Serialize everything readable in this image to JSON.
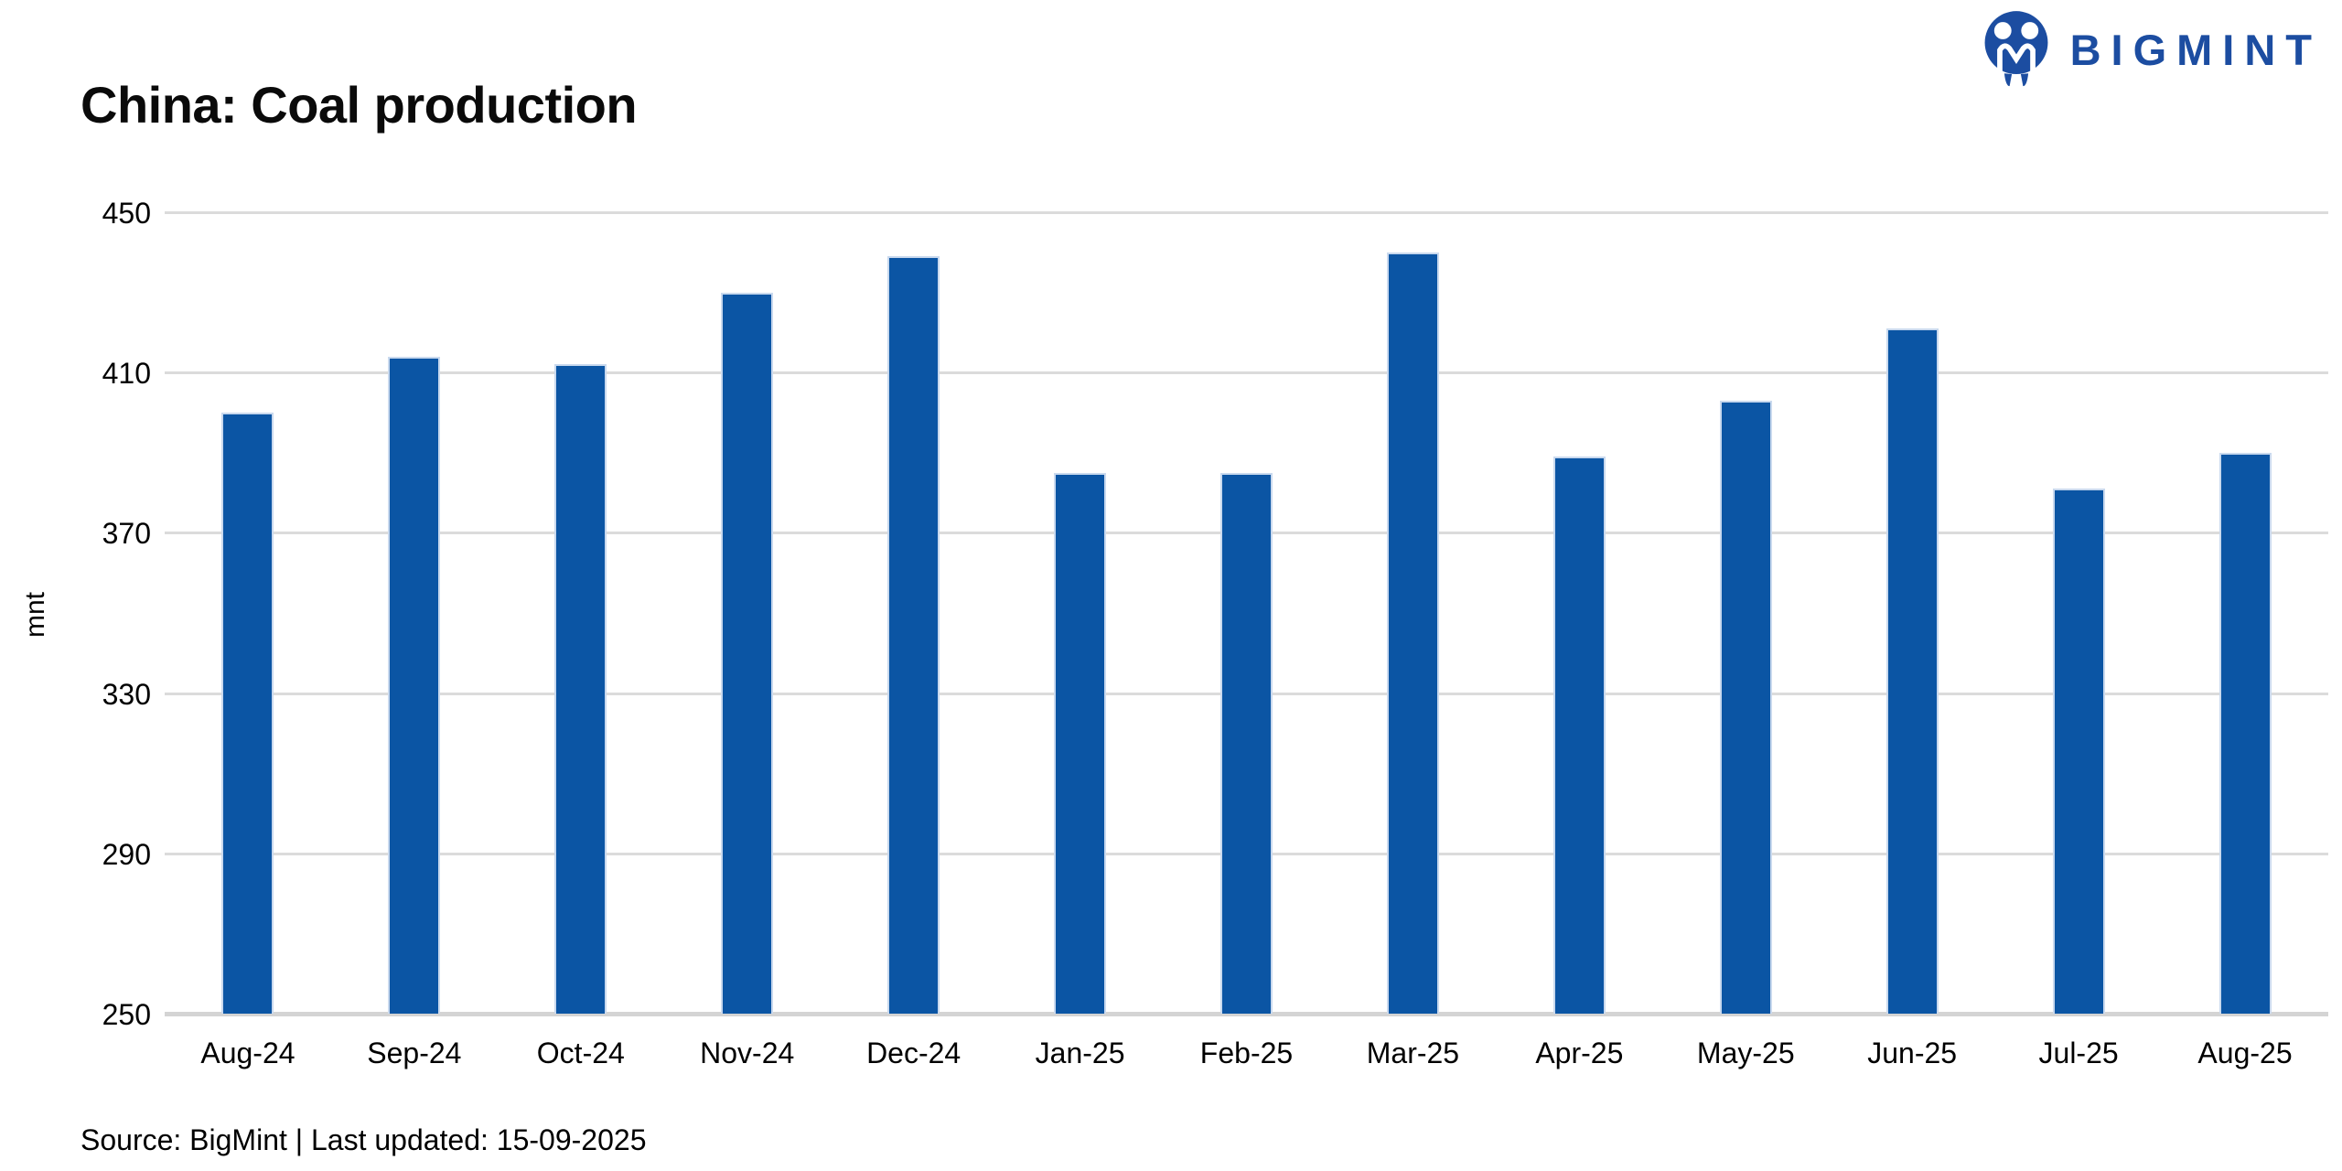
{
  "page": {
    "title": "China: Coal production",
    "source_note": "Source: BigMint | Last updated: 15-09-2025"
  },
  "brand": {
    "name": "BIGMINT",
    "logo_icon": "bigmint-two-figures-circle-icon",
    "color": "#1C4DA1"
  },
  "chart_data": {
    "type": "bar",
    "title": "China: Coal production",
    "xlabel": "",
    "ylabel": "mnt",
    "ylim": [
      250,
      450
    ],
    "yticks": [
      250,
      290,
      330,
      370,
      410,
      450
    ],
    "grid": "horizontal-only",
    "legend": "none",
    "bar_color": "#0B55A4",
    "gridline_color": "#DBDBDB",
    "categories": [
      "Aug-24",
      "Sep-24",
      "Oct-24",
      "Nov-24",
      "Dec-24",
      "Jan-25",
      "Feb-25",
      "Mar-25",
      "Apr-25",
      "May-25",
      "Jun-25",
      "Jul-25",
      "Aug-25"
    ],
    "values": [
      400,
      414,
      412,
      430,
      439,
      385,
      385,
      440,
      389,
      403,
      421,
      381,
      390
    ]
  }
}
